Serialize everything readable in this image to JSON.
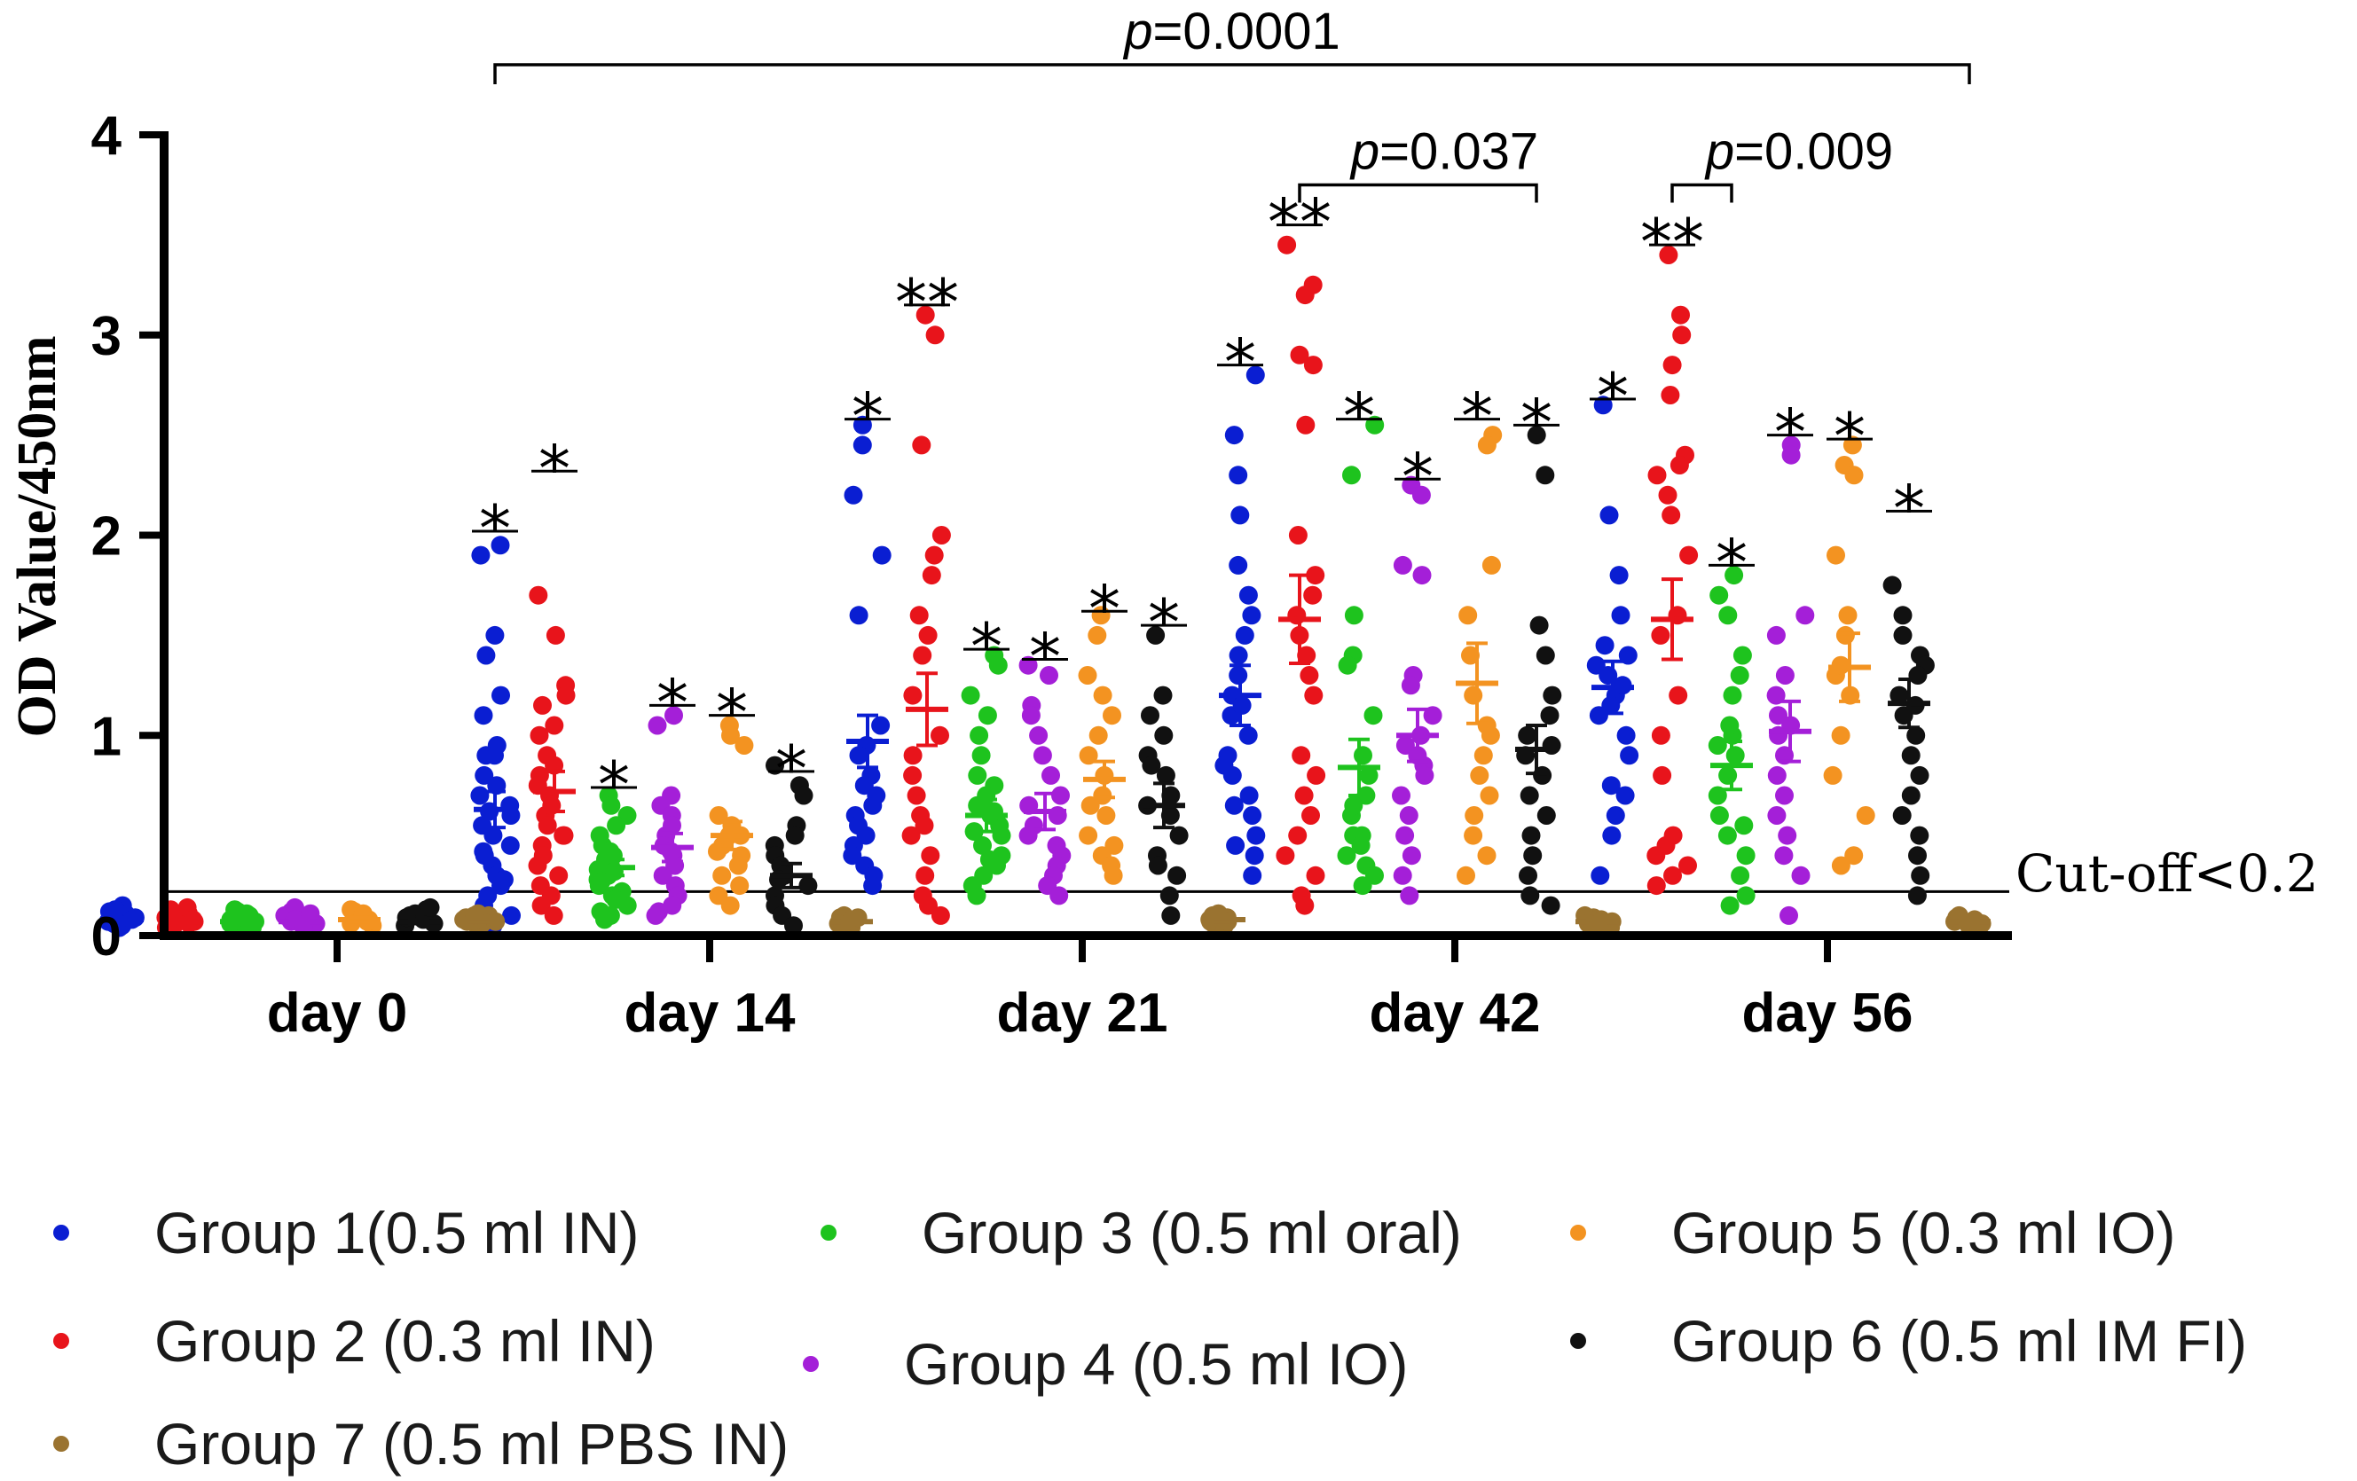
{
  "chart_data": {
    "type": "scatter",
    "ylabel": "OD Value/450nm",
    "ylim": [
      0,
      4
    ],
    "yticks": [
      "0",
      "1",
      "2",
      "3",
      "4"
    ],
    "categories": [
      "day 0",
      "day 14",
      "day 21",
      "day 42",
      "day 56"
    ],
    "cutoff": {
      "value": 0.22,
      "label": "Cut-off<0.2"
    },
    "colors": [
      "#0a1ed2",
      "#e8141b",
      "#1ec31e",
      "#a41fd8",
      "#f39321",
      "#111111",
      "#9a7330"
    ],
    "legend": [
      "Group 1(0.5 ml IN)",
      "Group 2 (0.3 ml IN)",
      "Group 3 (0.5 ml oral)",
      "Group 4 (0.5 ml IO)",
      "Group 5 (0.3 ml IO)",
      "Group 6 (0.5 ml IM FI)",
      "Group 7 (0.5 ml PBS IN)"
    ],
    "series": [
      {
        "name": "Group 1(0.5 ml IN)",
        "color": "#0a1ed2",
        "mean": [
          0.08,
          0.63,
          0.97,
          1.2,
          1.24
        ],
        "sem": [
          0.01,
          0.09,
          0.13,
          0.15,
          0.13
        ],
        "stars": [
          "",
          "*",
          "*",
          "*",
          "*"
        ],
        "star_y": [
          null,
          2.02,
          2.58,
          2.85,
          2.68
        ],
        "values": [
          [
            0.05,
            0.08,
            0.12,
            0.06,
            0.1,
            0.15,
            0.07,
            0.09,
            0.11,
            0.04,
            0.13,
            0.08
          ],
          [
            1.95,
            1.9,
            1.5,
            1.4,
            1.2,
            1.1,
            0.95,
            0.9,
            0.8,
            0.7,
            0.65,
            0.6,
            0.55,
            0.5,
            0.45,
            0.4,
            0.35,
            0.3,
            0.25,
            0.2,
            0.15,
            0.1,
            0.05,
            0.9,
            0.75,
            0.62,
            0.42,
            0.28
          ],
          [
            2.55,
            2.45,
            2.2,
            1.9,
            1.6,
            1.05,
            0.95,
            0.9,
            0.8,
            0.75,
            0.7,
            0.65,
            0.6,
            0.55,
            0.5,
            0.45,
            0.4,
            0.35,
            0.3,
            0.25
          ],
          [
            2.8,
            2.5,
            2.3,
            2.1,
            1.85,
            1.6,
            1.4,
            1.3,
            1.2,
            1.1,
            1.0,
            0.9,
            0.8,
            0.7,
            0.6,
            0.5,
            0.4,
            0.3,
            1.7,
            1.5,
            1.15,
            0.85,
            0.65,
            0.45
          ],
          [
            2.65,
            2.1,
            1.8,
            1.6,
            1.45,
            1.4,
            1.35,
            1.3,
            1.2,
            1.15,
            1.1,
            0.9,
            0.75,
            0.7,
            0.6,
            0.5,
            0.3,
            1.25,
            1.0
          ]
        ]
      },
      {
        "name": "Group 2 (0.3 ml IN)",
        "color": "#e8141b",
        "mean": [
          0.07,
          0.72,
          1.13,
          1.58,
          1.58
        ],
        "sem": [
          0.01,
          0.1,
          0.18,
          0.22,
          0.2
        ],
        "stars": [
          "",
          "*",
          "**",
          "**",
          "**"
        ],
        "star_y": [
          null,
          2.32,
          3.15,
          3.55,
          3.45
        ],
        "values": [
          [
            0.05,
            0.09,
            0.12,
            0.06,
            0.11,
            0.14,
            0.07,
            0.1,
            0.08,
            0.13,
            0.04,
            0.06
          ],
          [
            1.7,
            1.5,
            1.25,
            1.2,
            1.15,
            1.05,
            1.0,
            0.9,
            0.85,
            0.8,
            0.7,
            0.6,
            0.55,
            0.5,
            0.45,
            0.4,
            0.35,
            0.3,
            0.25,
            0.2,
            0.15,
            0.1,
            0.65,
            0.75,
            0.5
          ],
          [
            3.1,
            3.0,
            2.45,
            2.0,
            1.9,
            1.8,
            1.6,
            1.4,
            1.2,
            1.0,
            0.9,
            0.8,
            0.7,
            0.6,
            0.5,
            0.4,
            0.3,
            0.2,
            0.15,
            0.1,
            1.5,
            0.55
          ],
          [
            3.45,
            3.25,
            3.2,
            2.9,
            2.85,
            2.55,
            2.0,
            1.8,
            1.7,
            1.6,
            1.5,
            1.4,
            1.3,
            1.2,
            0.9,
            0.8,
            0.7,
            0.6,
            0.5,
            0.4,
            0.3,
            0.2,
            0.15
          ],
          [
            3.4,
            3.1,
            3.0,
            2.85,
            2.7,
            2.4,
            2.35,
            2.3,
            2.2,
            2.1,
            1.9,
            1.6,
            1.5,
            1.2,
            1.0,
            0.8,
            0.5,
            0.45,
            0.4,
            0.35,
            0.3,
            0.25
          ]
        ]
      },
      {
        "name": "Group 3 (0.5 ml oral)",
        "color": "#1ec31e",
        "mean": [
          0.07,
          0.34,
          0.6,
          0.84,
          0.85
        ],
        "sem": [
          0.01,
          0.04,
          0.08,
          0.14,
          0.12
        ],
        "stars": [
          "",
          "*",
          "*",
          "*",
          "*"
        ],
        "star_y": [
          null,
          0.74,
          1.43,
          2.58,
          1.85
        ],
        "values": [
          [
            0.05,
            0.08,
            0.11,
            0.06,
            0.1,
            0.13,
            0.07,
            0.09,
            0.12,
            0.04,
            0.06
          ],
          [
            0.7,
            0.65,
            0.6,
            0.55,
            0.5,
            0.45,
            0.4,
            0.38,
            0.35,
            0.32,
            0.3,
            0.28,
            0.25,
            0.22,
            0.2,
            0.18,
            0.15,
            0.12,
            0.1,
            0.08,
            0.42,
            0.33,
            0.27
          ],
          [
            1.4,
            1.35,
            1.2,
            1.1,
            1.0,
            0.9,
            0.8,
            0.75,
            0.7,
            0.65,
            0.6,
            0.55,
            0.5,
            0.45,
            0.4,
            0.35,
            0.3,
            0.25,
            0.2,
            0.52,
            0.62,
            0.38
          ],
          [
            2.55,
            2.3,
            1.6,
            1.4,
            1.35,
            1.1,
            0.9,
            0.8,
            0.7,
            0.6,
            0.5,
            0.4,
            0.35,
            0.3,
            0.25,
            0.5,
            0.65,
            0.45
          ],
          [
            1.8,
            1.7,
            1.6,
            1.4,
            1.3,
            1.2,
            1.0,
            0.9,
            0.8,
            0.7,
            0.6,
            0.5,
            0.4,
            0.3,
            0.2,
            0.15,
            0.55,
            1.05,
            0.95
          ]
        ]
      },
      {
        "name": "Group 4 (0.5 ml IO)",
        "color": "#a41fd8",
        "mean": [
          0.07,
          0.44,
          0.62,
          1.0,
          1.02
        ],
        "sem": [
          0.01,
          0.07,
          0.09,
          0.13,
          0.15
        ],
        "stars": [
          "",
          "*",
          "*",
          "*",
          "*"
        ],
        "star_y": [
          null,
          1.15,
          1.38,
          2.28,
          2.5
        ],
        "values": [
          [
            0.05,
            0.09,
            0.12,
            0.07,
            0.1,
            0.14,
            0.08,
            0.06,
            0.11,
            0.04
          ],
          [
            1.1,
            1.05,
            0.7,
            0.65,
            0.6,
            0.5,
            0.45,
            0.4,
            0.35,
            0.3,
            0.25,
            0.2,
            0.15,
            0.12,
            0.1,
            0.55,
            0.42
          ],
          [
            1.35,
            1.3,
            1.15,
            1.1,
            1.0,
            0.9,
            0.8,
            0.7,
            0.6,
            0.55,
            0.5,
            0.45,
            0.4,
            0.35,
            0.3,
            0.25,
            0.2,
            0.65
          ],
          [
            2.25,
            2.2,
            1.85,
            1.8,
            1.3,
            1.25,
            1.1,
            1.0,
            0.95,
            0.85,
            0.8,
            0.7,
            0.6,
            0.5,
            0.4,
            0.3,
            0.2,
            0.9
          ],
          [
            2.45,
            2.4,
            1.6,
            1.5,
            1.3,
            1.2,
            1.1,
            1.0,
            0.9,
            0.8,
            0.7,
            0.6,
            0.5,
            0.4,
            0.3,
            0.1,
            1.05
          ]
        ]
      },
      {
        "name": "Group 5 (0.3 ml IO)",
        "color": "#f39321",
        "mean": [
          0.08,
          0.5,
          0.78,
          1.26,
          1.34
        ],
        "sem": [
          0.01,
          0.07,
          0.09,
          0.2,
          0.17
        ],
        "stars": [
          "",
          "*",
          "*",
          "*",
          "*"
        ],
        "star_y": [
          null,
          1.1,
          1.62,
          2.58,
          2.48
        ],
        "values": [
          [
            0.05,
            0.09,
            0.12,
            0.07,
            0.1,
            0.13,
            0.08,
            0.06,
            0.11
          ],
          [
            1.05,
            1.0,
            0.95,
            0.6,
            0.55,
            0.5,
            0.45,
            0.4,
            0.35,
            0.3,
            0.25,
            0.2,
            0.15,
            0.5,
            0.42
          ],
          [
            1.6,
            1.5,
            1.3,
            1.2,
            1.1,
            1.0,
            0.9,
            0.8,
            0.7,
            0.6,
            0.5,
            0.45,
            0.4,
            0.35,
            0.3,
            0.65
          ],
          [
            2.5,
            2.45,
            1.85,
            1.6,
            1.4,
            1.2,
            1.0,
            0.9,
            0.7,
            0.6,
            0.5,
            0.4,
            0.3,
            1.05,
            0.8
          ],
          [
            2.45,
            2.35,
            2.3,
            1.9,
            1.6,
            1.5,
            1.3,
            1.2,
            1.0,
            0.8,
            0.6,
            0.4,
            0.35,
            1.35
          ]
        ]
      },
      {
        "name": "Group 6 (0.5 ml IM FI)",
        "color": "#111111",
        "mean": [
          0.07,
          0.3,
          0.65,
          0.93,
          1.16
        ],
        "sem": [
          0.01,
          0.06,
          0.11,
          0.12,
          0.12
        ],
        "stars": [
          "",
          "*",
          "*",
          "*",
          "*"
        ],
        "star_y": [
          null,
          0.82,
          1.55,
          2.55,
          2.12
        ],
        "values": [
          [
            0.06,
            0.1,
            0.13,
            0.08,
            0.11,
            0.14,
            0.05,
            0.09
          ],
          [
            0.85,
            0.75,
            0.7,
            0.55,
            0.45,
            0.4,
            0.35,
            0.3,
            0.25,
            0.2,
            0.15,
            0.1,
            0.05,
            0.5,
            0.28
          ],
          [
            1.5,
            1.2,
            1.1,
            1.0,
            0.9,
            0.8,
            0.7,
            0.6,
            0.5,
            0.4,
            0.3,
            0.2,
            0.1,
            0.65,
            0.85,
            0.35
          ],
          [
            2.5,
            2.3,
            1.55,
            1.4,
            1.2,
            1.1,
            1.0,
            0.9,
            0.8,
            0.7,
            0.6,
            0.5,
            0.4,
            0.3,
            0.2,
            0.15,
            0.95
          ],
          [
            1.75,
            1.6,
            1.5,
            1.4,
            1.35,
            1.3,
            1.2,
            1.1,
            1.0,
            0.9,
            0.8,
            0.7,
            0.6,
            0.5,
            0.4,
            0.3,
            0.2,
            1.15
          ]
        ]
      },
      {
        "name": "Group 7 (0.5 ml PBS IN)",
        "color": "#9a7330",
        "mean": [
          0.08,
          0.07,
          0.08,
          0.07,
          0.07
        ],
        "sem": [
          0.01,
          0.01,
          0.01,
          0.01,
          0.01
        ],
        "stars": [
          "",
          "",
          "",
          "",
          ""
        ],
        "star_y": [
          null,
          null,
          null,
          null,
          null
        ],
        "values": [
          [
            0.06,
            0.08,
            0.1,
            0.07,
            0.09,
            0.11,
            0.05,
            0.08,
            0.07,
            0.1
          ],
          [
            0.05,
            0.07,
            0.09,
            0.06,
            0.08,
            0.1,
            0.04,
            0.07,
            0.06,
            0.09
          ],
          [
            0.06,
            0.08,
            0.1,
            0.07,
            0.09,
            0.11,
            0.05,
            0.08,
            0.07
          ],
          [
            0.05,
            0.07,
            0.09,
            0.06,
            0.08,
            0.1,
            0.04,
            0.07,
            0.06
          ],
          [
            0.05,
            0.07,
            0.09,
            0.06,
            0.08,
            0.1,
            0.04,
            0.07,
            0.06
          ]
        ]
      }
    ],
    "brackets": [
      {
        "label_p": "p",
        "label_rest": "=0.0001",
        "from_day": 1,
        "from_group": 0,
        "to_day": 4,
        "to_group": 6,
        "y": 4.35
      },
      {
        "label_p": "p",
        "label_rest": "=0.037",
        "from_day": 3,
        "from_group": 1,
        "to_day": 3,
        "to_group": 5,
        "y": 3.75
      },
      {
        "label_p": "p",
        "label_rest": "=0.009",
        "from_day": 4,
        "from_group": 1,
        "to_day": 4,
        "to_group": 2,
        "y": 3.75
      }
    ]
  }
}
